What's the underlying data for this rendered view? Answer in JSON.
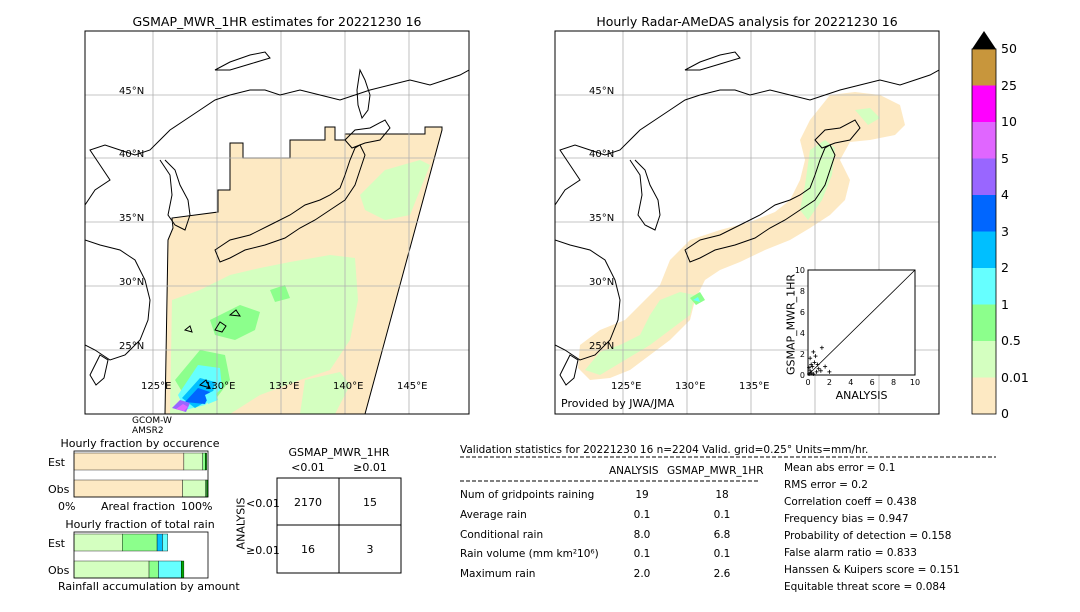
{
  "left_map": {
    "title": "GSMAP_MWR_1HR estimates for 20221230 16",
    "lat_labels": [
      "45°N",
      "40°N",
      "35°N",
      "30°N",
      "25°N"
    ],
    "lon_labels": [
      "125°E",
      "130°E",
      "135°E",
      "140°E",
      "145°E"
    ],
    "satellite_label_1": "GCOM-W",
    "satellite_label_2": "AMSR2"
  },
  "right_map": {
    "title": "Hourly Radar-AMeDAS analysis for 20221230 16",
    "lat_labels": [
      "45°N",
      "40°N",
      "35°N",
      "30°N",
      "25°N"
    ],
    "lon_labels": [
      "125°E",
      "130°E",
      "135°E"
    ],
    "credit": "Provided by JWA/JMA"
  },
  "colorbar": {
    "labels": [
      "50",
      "25",
      "10",
      "5",
      "4",
      "3",
      "2",
      "1",
      "0.5",
      "0.01",
      "0"
    ],
    "colors": [
      "#c8963c",
      "#ff00ff",
      "#e066ff",
      "#9966ff",
      "#0066ff",
      "#00bfff",
      "#66ffff",
      "#8cff8c",
      "#d4ffc0",
      "#fde9c3"
    ]
  },
  "chart_data": [
    {
      "type": "scatter",
      "title": "",
      "xlabel": "ANALYSIS",
      "ylabel": "GSMAP_MWR_1HR",
      "xlim": [
        0,
        10
      ],
      "ylim": [
        0,
        10
      ],
      "x_ticks": [
        "0",
        "2",
        "4",
        "6",
        "8",
        "10"
      ],
      "y_ticks": [
        "0",
        "2",
        "4",
        "6",
        "8",
        "10"
      ],
      "points": [
        {
          "x": 0.1,
          "y": 0.1
        },
        {
          "x": 0.3,
          "y": 0.2
        },
        {
          "x": 0.5,
          "y": 0.1
        },
        {
          "x": 0.2,
          "y": 0.4
        },
        {
          "x": 0.8,
          "y": 0.3
        },
        {
          "x": 1.0,
          "y": 0.6
        },
        {
          "x": 0.4,
          "y": 0.8
        },
        {
          "x": 0.6,
          "y": 1.2
        },
        {
          "x": 0.2,
          "y": 1.6
        },
        {
          "x": 1.2,
          "y": 0.4
        },
        {
          "x": 0.9,
          "y": 1.0
        },
        {
          "x": 0.3,
          "y": 1.0
        },
        {
          "x": 0.5,
          "y": 2.2
        },
        {
          "x": 1.3,
          "y": 2.6
        },
        {
          "x": 0.7,
          "y": 1.8
        },
        {
          "x": 1.6,
          "y": 0.8
        },
        {
          "x": 2.0,
          "y": 0.3
        },
        {
          "x": 0.1,
          "y": 0.7
        }
      ]
    },
    {
      "type": "bar",
      "title": "Hourly fraction by occurence",
      "categories": [
        "Est",
        "Obs"
      ],
      "xlabel": "Areal fraction",
      "x_ticks": [
        "0%",
        "100%"
      ],
      "series": [
        {
          "color": "#fde9c3",
          "values": [
            0.82,
            0.81
          ]
        },
        {
          "color": "#d4ffc0",
          "values": [
            0.14,
            0.17
          ]
        },
        {
          "color": "#8cff8c",
          "values": [
            0.02,
            0.01
          ]
        },
        {
          "color": "#00aa00",
          "values": [
            0.01,
            0.01
          ]
        }
      ]
    },
    {
      "type": "bar",
      "title": "Hourly fraction of total rain",
      "categories": [
        "Est",
        "Obs"
      ],
      "xlabel": "Rainfall accumulation by amount",
      "series": [
        {
          "color": "#d4ffc0",
          "values": [
            0.36,
            0.56
          ]
        },
        {
          "color": "#8cff8c",
          "values": [
            0.26,
            0.07
          ]
        },
        {
          "color": "#00bfff",
          "values": [
            0.04,
            0.0
          ]
        },
        {
          "color": "#66ffff",
          "values": [
            0.04,
            0.17
          ]
        },
        {
          "color": "#00aa00",
          "values": [
            0.0,
            0.02
          ]
        }
      ]
    }
  ],
  "contingency": {
    "title": "GSMAP_MWR_1HR",
    "col_labels": [
      "<0.01",
      "≥0.01"
    ],
    "row_labels": [
      "<0.01",
      "≥0.01"
    ],
    "side_label": "ANALYSIS",
    "cells": [
      [
        "2170",
        "15"
      ],
      [
        "16",
        "3"
      ]
    ]
  },
  "validation": {
    "header": "Validation statistics for 20221230 16  n=2204 Valid. grid=0.25° Units=mm/hr.",
    "col_analysis": "ANALYSIS",
    "col_gsmap": "GSMAP_MWR_1HR",
    "rows": [
      {
        "label": "Num of gridpoints raining",
        "a": "19",
        "g": "18"
      },
      {
        "label": "Average rain",
        "a": "0.1",
        "g": "0.1"
      },
      {
        "label": "Conditional rain",
        "a": "8.0",
        "g": "6.8"
      },
      {
        "label": "Rain volume (mm km²10⁶)",
        "a": "0.1",
        "g": "0.1"
      },
      {
        "label": "Maximum rain",
        "a": "2.0",
        "g": "2.6"
      }
    ],
    "scores": [
      "Mean abs error =    0.1",
      "RMS error =    0.2",
      "Correlation coeff =  0.438",
      "Frequency bias =  0.947",
      "Probability of detection =  0.158",
      "False alarm ratio =  0.833",
      "Hanssen & Kuipers score =  0.151",
      "Equitable threat score =  0.084"
    ]
  }
}
